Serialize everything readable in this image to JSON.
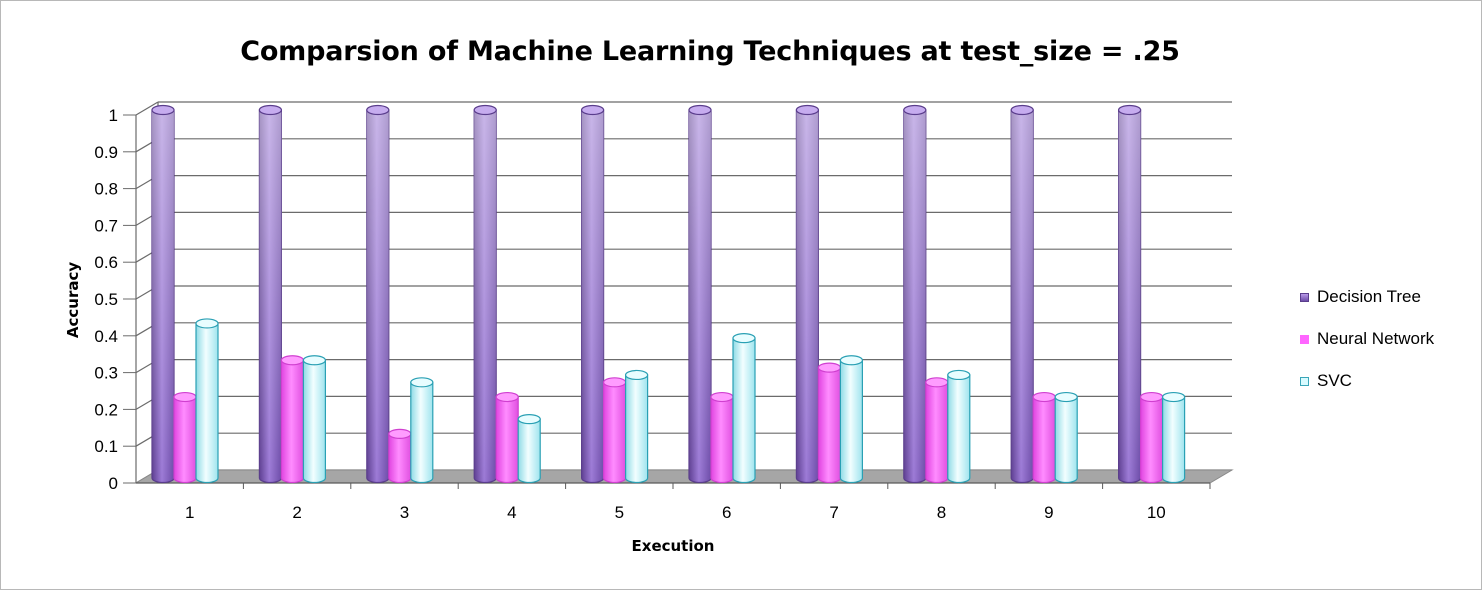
{
  "chart_data": {
    "type": "bar",
    "title": "Comparsion of Machine Learning Techniques at test_size = .25",
    "xlabel": "Execution",
    "ylabel": "Accuracy",
    "categories": [
      "1",
      "2",
      "3",
      "4",
      "5",
      "6",
      "7",
      "8",
      "9",
      "10"
    ],
    "yticks": [
      "0",
      "0.1",
      "0.2",
      "0.3",
      "0.4",
      "0.5",
      "0.6",
      "0.7",
      "0.8",
      "0.9",
      "1"
    ],
    "ylim": [
      0,
      1
    ],
    "grid": true,
    "legend_position": "right",
    "series": [
      {
        "name": "Decision Tree",
        "color": "#9c7ad6",
        "values": [
          1,
          1,
          1,
          1,
          1,
          1,
          1,
          1,
          1,
          1
        ]
      },
      {
        "name": "Neural Network",
        "color": "#ff66ff",
        "values": [
          0.22,
          0.32,
          0.12,
          0.22,
          0.26,
          0.22,
          0.3,
          0.26,
          0.22,
          0.22
        ]
      },
      {
        "name": "SVC",
        "color": "#bff3fa",
        "values": [
          0.42,
          0.32,
          0.26,
          0.16,
          0.28,
          0.38,
          0.32,
          0.28,
          0.22,
          0.22
        ]
      }
    ]
  }
}
